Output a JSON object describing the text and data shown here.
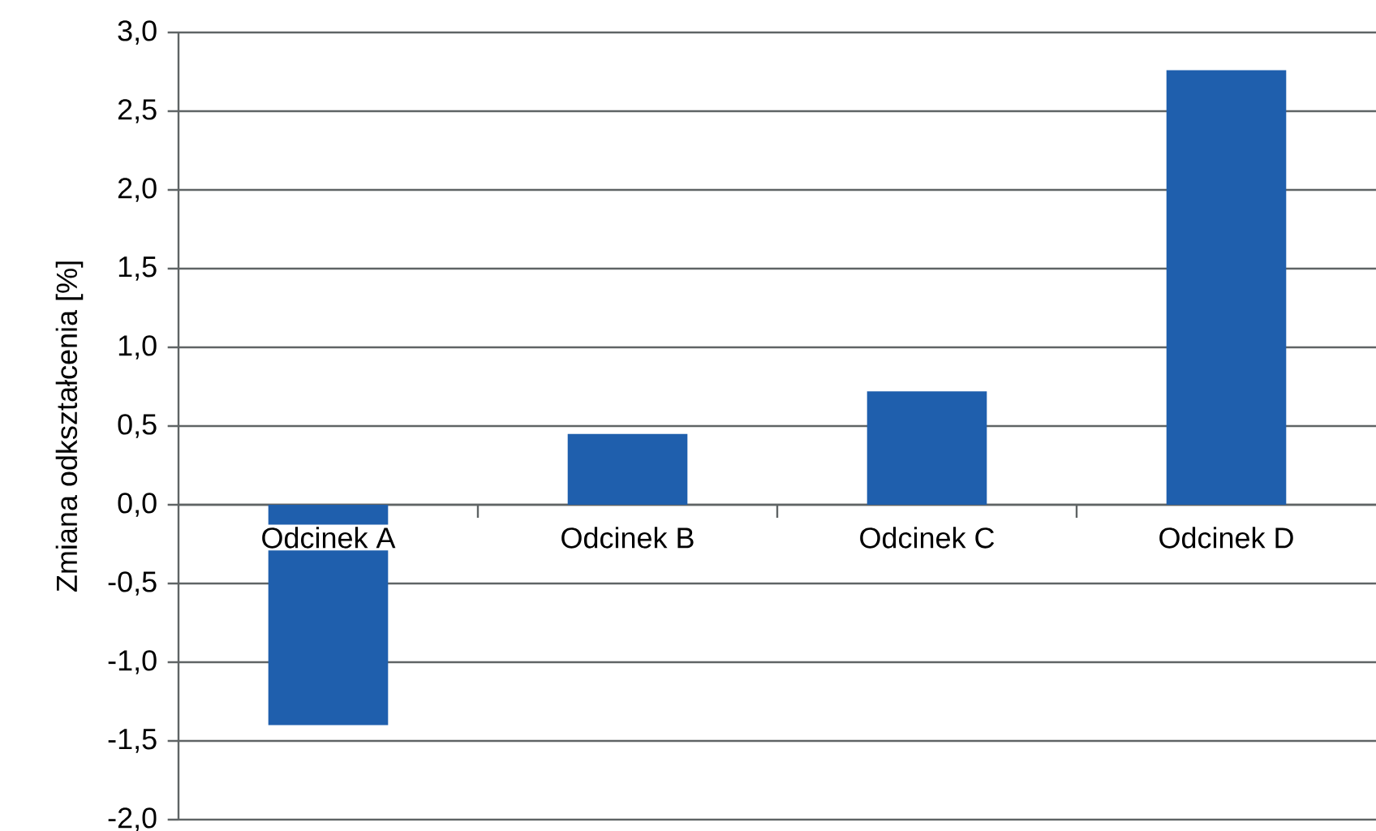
{
  "chart_data": {
    "type": "bar",
    "ylabel": "Zmiana odkształcenia [%]",
    "categories": [
      "Odcinek A",
      "Odcinek B",
      "Odcinek C",
      "Odcinek D"
    ],
    "values": [
      -1.4,
      0.45,
      0.72,
      2.76
    ],
    "color": "#1f5fad",
    "ylim": [
      -2.0,
      3.0
    ],
    "yticks": [
      {
        "value": -2.0,
        "label": "-2,0"
      },
      {
        "value": -1.5,
        "label": "-1,5"
      },
      {
        "value": -1.0,
        "label": "-1,0"
      },
      {
        "value": -0.5,
        "label": "-0,5"
      },
      {
        "value": 0.0,
        "label": "0,0"
      },
      {
        "value": 0.5,
        "label": "0,5"
      },
      {
        "value": 1.0,
        "label": "1,0"
      },
      {
        "value": 1.5,
        "label": "1,5"
      },
      {
        "value": 2.0,
        "label": "2,0"
      },
      {
        "value": 2.5,
        "label": "2,5"
      },
      {
        "value": 3.0,
        "label": "3,0"
      }
    ],
    "grid": "y"
  }
}
